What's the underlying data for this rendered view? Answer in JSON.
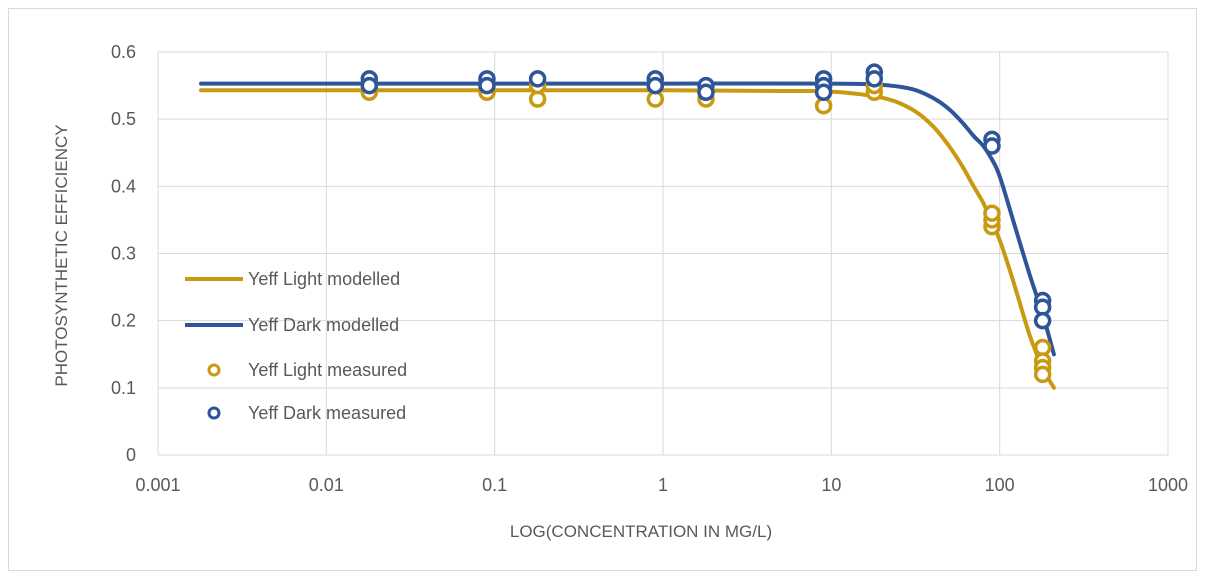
{
  "chart_data": {
    "type": "scatter",
    "xlabel": "LOG(CONCENTRATION IN MG/L)",
    "ylabel": "PHOTOSYNTHETIC EFFICIENCY",
    "x_scale": "log",
    "xlim": [
      0.001,
      1000
    ],
    "ylim": [
      0,
      0.6
    ],
    "x_ticks": [
      "0.001",
      "0.01",
      "0.1",
      "1",
      "10",
      "100",
      "1000"
    ],
    "y_ticks": [
      "0",
      "0.1",
      "0.2",
      "0.3",
      "0.4",
      "0.5",
      "0.6"
    ],
    "grid": true,
    "legend_position": "left-center",
    "series": [
      {
        "name": "Yeff Light modelled",
        "kind": "line",
        "color": "#c89a12",
        "x": [
          0.0018,
          0.01,
          0.1,
          1,
          5,
          10,
          20,
          30,
          40,
          50,
          60,
          70,
          80,
          90,
          100,
          120,
          150,
          180,
          210
        ],
        "y": [
          0.543,
          0.543,
          0.543,
          0.543,
          0.542,
          0.541,
          0.532,
          0.515,
          0.49,
          0.46,
          0.43,
          0.4,
          0.375,
          0.345,
          0.32,
          0.26,
          0.18,
          0.13,
          0.1
        ]
      },
      {
        "name": "Yeff Dark modelled",
        "kind": "line",
        "color": "#2e5597",
        "x": [
          0.0018,
          0.01,
          0.1,
          1,
          10,
          20,
          30,
          40,
          50,
          60,
          70,
          80,
          90,
          100,
          120,
          150,
          180,
          210
        ],
        "y": [
          0.553,
          0.553,
          0.553,
          0.553,
          0.553,
          0.551,
          0.545,
          0.532,
          0.515,
          0.495,
          0.475,
          0.46,
          0.44,
          0.415,
          0.35,
          0.27,
          0.21,
          0.15
        ]
      },
      {
        "name": "Yeff Light measured",
        "kind": "markers",
        "color": "#c89a12",
        "x": [
          0.018,
          0.018,
          0.09,
          0.09,
          0.18,
          0.18,
          0.9,
          0.9,
          1.8,
          1.8,
          9,
          9,
          18,
          18,
          90,
          90,
          90,
          180,
          180,
          180,
          180
        ],
        "y": [
          0.54,
          0.55,
          0.54,
          0.55,
          0.53,
          0.55,
          0.53,
          0.55,
          0.53,
          0.54,
          0.52,
          0.55,
          0.54,
          0.55,
          0.34,
          0.35,
          0.36,
          0.16,
          0.14,
          0.13,
          0.12
        ]
      },
      {
        "name": "Yeff Dark measured",
        "kind": "markers",
        "color": "#2e5597",
        "x": [
          0.018,
          0.018,
          0.09,
          0.09,
          0.18,
          0.9,
          0.9,
          1.8,
          1.8,
          9,
          9,
          9,
          18,
          18,
          90,
          90,
          180,
          180,
          180
        ],
        "y": [
          0.56,
          0.55,
          0.56,
          0.55,
          0.56,
          0.56,
          0.55,
          0.55,
          0.54,
          0.56,
          0.55,
          0.54,
          0.57,
          0.56,
          0.47,
          0.46,
          0.23,
          0.22,
          0.2
        ]
      }
    ]
  }
}
